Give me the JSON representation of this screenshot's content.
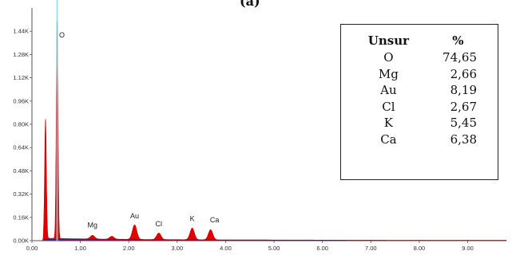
{
  "figure_label": "(a)",
  "chart_data": {
    "type": "area",
    "title": "",
    "xlabel": "",
    "ylabel": "",
    "xlim": [
      0,
      9.8
    ],
    "ylim": [
      0,
      1600
    ],
    "x_ticks": [
      "0.00",
      "1.00",
      "2.00",
      "3.00",
      "4.00",
      "5.00",
      "6.00",
      "7.00",
      "8.00",
      "9.00"
    ],
    "x_tick_values": [
      0,
      1,
      2,
      3,
      4,
      5,
      6,
      7,
      8,
      9
    ],
    "y_ticks": [
      "0.00K",
      "0.16K",
      "0.32K",
      "0.48K",
      "0.64K",
      "0.80K",
      "0.96K",
      "1.12K",
      "1.28K",
      "1.44K"
    ],
    "y_tick_values": [
      0,
      160,
      320,
      480,
      640,
      800,
      960,
      1120,
      1280,
      1440
    ],
    "peaks": [
      {
        "label": "O",
        "x": 0.52,
        "y": 1500,
        "show_label": true
      },
      {
        "label": "",
        "x": 0.28,
        "y": 820,
        "show_label": false
      },
      {
        "label": "Mg",
        "x": 1.25,
        "y": 25,
        "show_label": true
      },
      {
        "label": "",
        "x": 1.65,
        "y": 20,
        "show_label": false
      },
      {
        "label": "Au",
        "x": 2.12,
        "y": 100,
        "show_label": true
      },
      {
        "label": "Cl",
        "x": 2.62,
        "y": 45,
        "show_label": true
      },
      {
        "label": "K",
        "x": 3.31,
        "y": 80,
        "show_label": true
      },
      {
        "label": "Ca",
        "x": 3.69,
        "y": 70,
        "show_label": true
      }
    ],
    "colors": {
      "spectrum": "#e00000",
      "baseline": "#1f2a9a",
      "marker": "#7fe0f0",
      "axis": "#555555"
    }
  },
  "composition_table": {
    "headers": [
      "Unsur",
      "%"
    ],
    "rows": [
      [
        "O",
        "74,65"
      ],
      [
        "Mg",
        "2,66"
      ],
      [
        "Au",
        "8,19"
      ],
      [
        "Cl",
        "2,67"
      ],
      [
        "K",
        "5,45"
      ],
      [
        "Ca",
        "6,38"
      ]
    ]
  }
}
